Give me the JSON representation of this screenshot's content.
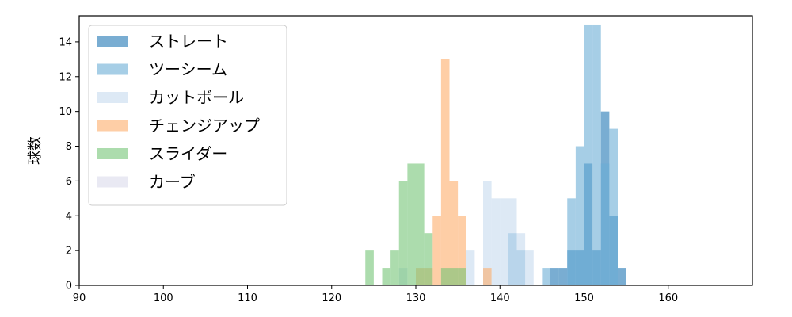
{
  "chart_data": {
    "type": "bar",
    "title": "",
    "xlabel": "",
    "ylabel": "球数",
    "xlim": [
      90,
      170
    ],
    "ylim": [
      0,
      15.5
    ],
    "xticks": [
      90,
      100,
      110,
      120,
      130,
      140,
      150,
      160
    ],
    "yticks": [
      0,
      2,
      4,
      6,
      8,
      10,
      12,
      14
    ],
    "bin_width": 1,
    "grid": false,
    "legend_position": "top-left",
    "series": [
      {
        "name": "ストレート",
        "color": "#1f77b4",
        "bins": [
          [
            146,
            1
          ],
          [
            147,
            1
          ],
          [
            148,
            2
          ],
          [
            149,
            2
          ],
          [
            150,
            7
          ],
          [
            151,
            2
          ],
          [
            152,
            10
          ],
          [
            153,
            4
          ],
          [
            154,
            1
          ]
        ]
      },
      {
        "name": "ツーシーム",
        "color": "#6baed6",
        "bins": [
          [
            141,
            3
          ],
          [
            142,
            2
          ],
          [
            145,
            1
          ],
          [
            148,
            5
          ],
          [
            149,
            8
          ],
          [
            150,
            15
          ],
          [
            151,
            15
          ],
          [
            152,
            7
          ],
          [
            153,
            9
          ]
        ]
      },
      {
        "name": "カットボール",
        "color": "#c6dbef",
        "bins": [
          [
            128,
            1
          ],
          [
            136,
            2
          ],
          [
            138,
            6
          ],
          [
            139,
            5
          ],
          [
            140,
            5
          ],
          [
            141,
            5
          ],
          [
            142,
            3
          ],
          [
            143,
            2
          ]
        ]
      },
      {
        "name": "チェンジアップ",
        "color": "#fdae6b",
        "bins": [
          [
            130,
            1
          ],
          [
            131,
            1
          ],
          [
            132,
            4
          ],
          [
            133,
            13
          ],
          [
            134,
            6
          ],
          [
            135,
            4
          ],
          [
            138,
            1
          ]
        ]
      },
      {
        "name": "スライダー",
        "color": "#74c476",
        "bins": [
          [
            124,
            2
          ],
          [
            126,
            1
          ],
          [
            127,
            2
          ],
          [
            128,
            6
          ],
          [
            129,
            7
          ],
          [
            130,
            7
          ],
          [
            131,
            3
          ],
          [
            133,
            1
          ],
          [
            134,
            1
          ],
          [
            135,
            1
          ]
        ]
      },
      {
        "name": "カーブ",
        "color": "#dadaeb",
        "bins": []
      }
    ]
  }
}
